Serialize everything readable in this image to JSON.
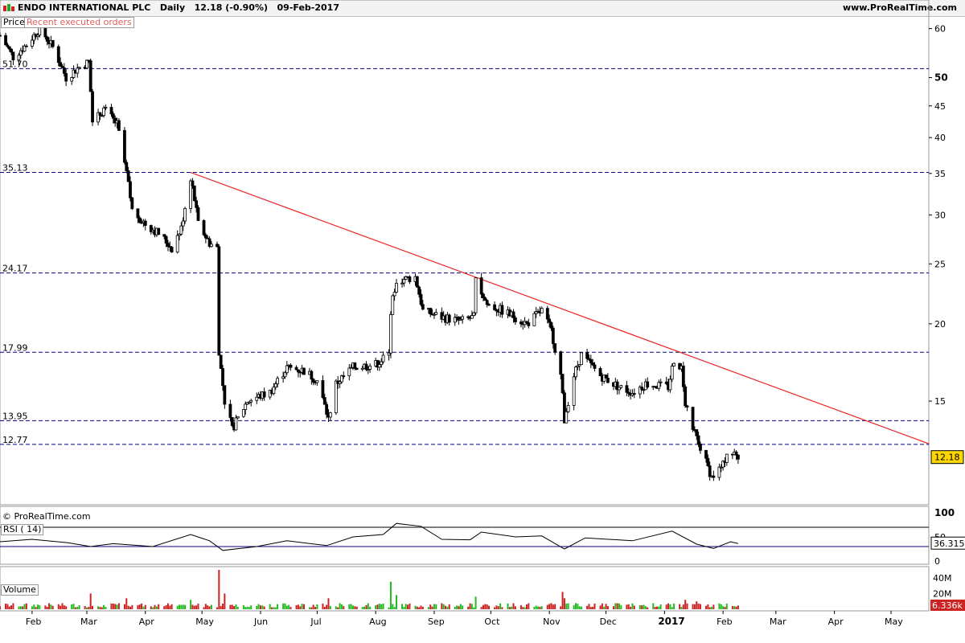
{
  "header": {
    "symbol": "ENDO INTERNATIONAL PLC",
    "period": "Daily",
    "quote": "12.18 (-0.90%)",
    "date": "09-Feb-2017",
    "site": "www.ProRealTime.com"
  },
  "tabs": {
    "price": "Price",
    "recent_orders": "Recent executed orders",
    "rsi": "RSI ( 14)",
    "volume": "Volume"
  },
  "copyright": "© ProRealTime.com",
  "colors": {
    "up": "#ffffff",
    "down": "#000000",
    "trendline": "#ee2222",
    "level_line": "#000080",
    "rsi_line": "#000000",
    "rsi_overbought_fill": "#cc6666",
    "rsi_oversold_fill": "#66aa66",
    "volume_up": "#22bb22",
    "volume_down": "#cc2222",
    "last_price_bg": "#ffd700",
    "volume_badge": "#cc2222"
  },
  "chart_data": {
    "type": "candlestick",
    "price_axis": {
      "ticks": [
        60,
        50,
        45,
        40,
        35,
        30,
        25,
        20,
        15
      ],
      "bold_ticks": [
        50
      ],
      "ylim_log": [
        10.2,
        64
      ]
    },
    "horizontal_levels": [
      {
        "value": 51.7,
        "label": "51.70"
      },
      {
        "value": 35.13,
        "label": "35.13"
      },
      {
        "value": 24.17,
        "label": "24.17"
      },
      {
        "value": 17.99,
        "label": "17.99"
      },
      {
        "value": 13.95,
        "label": "13.95"
      },
      {
        "value": 12.77,
        "label": "12.77"
      }
    ],
    "last_price": "12.18",
    "x_axis": {
      "labels": [
        "Feb",
        "Mar",
        "Apr",
        "May",
        "Jun",
        "Jul",
        "Aug",
        "Sep",
        "Oct",
        "Nov",
        "Dec",
        "2017",
        "Feb",
        "Mar",
        "Apr",
        "May"
      ],
      "bold_labels": [
        "2017"
      ],
      "start": "2016-01-15",
      "end": "2017-05-21"
    },
    "trendline": {
      "from": {
        "date": "2016-04-25",
        "value": 35.13
      },
      "to": {
        "date": "2017-05-21",
        "value": 12.8
      }
    },
    "price_path": [
      [
        "2016-01-15",
        58.5
      ],
      [
        "2016-01-22",
        54.0
      ],
      [
        "2016-01-29",
        56.5
      ],
      [
        "2016-02-05",
        60.0
      ],
      [
        "2016-02-12",
        56.0
      ],
      [
        "2016-02-19",
        50.0
      ],
      [
        "2016-02-26",
        52.0
      ],
      [
        "2016-03-02",
        53.0
      ],
      [
        "2016-03-04",
        42.0
      ],
      [
        "2016-03-10",
        44.5
      ],
      [
        "2016-03-17",
        42.0
      ],
      [
        "2016-03-22",
        35.0
      ],
      [
        "2016-03-25",
        30.5
      ],
      [
        "2016-04-01",
        29.0
      ],
      [
        "2016-04-08",
        28.0
      ],
      [
        "2016-04-15",
        26.5
      ],
      [
        "2016-04-20",
        28.5
      ],
      [
        "2016-04-25",
        34.5
      ],
      [
        "2016-04-29",
        29.0
      ],
      [
        "2016-05-05",
        27.0
      ],
      [
        "2016-05-09",
        26.5
      ],
      [
        "2016-05-10",
        17.8
      ],
      [
        "2016-05-13",
        15.0
      ],
      [
        "2016-05-17",
        13.5
      ],
      [
        "2016-05-25",
        15.0
      ],
      [
        "2016-06-06",
        15.5
      ],
      [
        "2016-06-15",
        17.0
      ],
      [
        "2016-06-24",
        16.8
      ],
      [
        "2016-07-01",
        16.2
      ],
      [
        "2016-07-07",
        14.0
      ],
      [
        "2016-07-11",
        16.0
      ],
      [
        "2016-07-20",
        17.0
      ],
      [
        "2016-08-01",
        17.2
      ],
      [
        "2016-08-08",
        17.8
      ],
      [
        "2016-08-09",
        21.0
      ],
      [
        "2016-08-12",
        23.5
      ],
      [
        "2016-08-22",
        23.8
      ],
      [
        "2016-08-26",
        21.0
      ],
      [
        "2016-09-05",
        20.5
      ],
      [
        "2016-09-15",
        20.2
      ],
      [
        "2016-09-22",
        20.5
      ],
      [
        "2016-09-23",
        23.5
      ],
      [
        "2016-09-29",
        21.5
      ],
      [
        "2016-10-07",
        21.0
      ],
      [
        "2016-10-14",
        20.5
      ],
      [
        "2016-10-20",
        20.0
      ],
      [
        "2016-10-28",
        21.0
      ],
      [
        "2016-11-02",
        19.5
      ],
      [
        "2016-11-07",
        16.5
      ],
      [
        "2016-11-09",
        14.0
      ],
      [
        "2016-11-14",
        16.5
      ],
      [
        "2016-11-18",
        17.8
      ],
      [
        "2016-11-28",
        16.5
      ],
      [
        "2016-12-08",
        15.8
      ],
      [
        "2016-12-15",
        15.5
      ],
      [
        "2016-12-22",
        16.0
      ],
      [
        "2017-01-03",
        15.8
      ],
      [
        "2017-01-06",
        17.5
      ],
      [
        "2017-01-10",
        17.0
      ],
      [
        "2017-01-12",
        15.0
      ],
      [
        "2017-01-16",
        13.5
      ],
      [
        "2017-01-20",
        12.6
      ],
      [
        "2017-01-26",
        11.3
      ],
      [
        "2017-02-01",
        11.8
      ],
      [
        "2017-02-03",
        12.4
      ],
      [
        "2017-02-07",
        12.3
      ],
      [
        "2017-02-09",
        12.18
      ]
    ],
    "rsi": {
      "label": "RSI ( 14)",
      "value": "36.315",
      "ticks": [
        100,
        50,
        0
      ],
      "overbought": 70,
      "oversold": 30,
      "path": [
        [
          "2016-01-15",
          40
        ],
        [
          "2016-02-01",
          45
        ],
        [
          "2016-02-20",
          38
        ],
        [
          "2016-03-03",
          30
        ],
        [
          "2016-03-15",
          36
        ],
        [
          "2016-04-05",
          30
        ],
        [
          "2016-04-25",
          55
        ],
        [
          "2016-05-05",
          42
        ],
        [
          "2016-05-12",
          22
        ],
        [
          "2016-05-30",
          30
        ],
        [
          "2016-06-15",
          42
        ],
        [
          "2016-07-06",
          32
        ],
        [
          "2016-07-20",
          50
        ],
        [
          "2016-08-05",
          55
        ],
        [
          "2016-08-12",
          78
        ],
        [
          "2016-08-25",
          72
        ],
        [
          "2016-09-05",
          45
        ],
        [
          "2016-09-20",
          44
        ],
        [
          "2016-09-26",
          60
        ],
        [
          "2016-10-14",
          50
        ],
        [
          "2016-10-28",
          52
        ],
        [
          "2016-11-09",
          25
        ],
        [
          "2016-11-20",
          48
        ],
        [
          "2016-12-15",
          42
        ],
        [
          "2017-01-05",
          62
        ],
        [
          "2017-01-18",
          35
        ],
        [
          "2017-01-27",
          26
        ],
        [
          "2017-02-05",
          40
        ],
        [
          "2017-02-09",
          36.3
        ]
      ]
    },
    "volume": {
      "label": "Volume",
      "ticks": [
        "40M",
        "20M"
      ],
      "badge": "6.336k",
      "max": 50,
      "spikes": [
        [
          "2016-03-03",
          20
        ],
        [
          "2016-03-22",
          14
        ],
        [
          "2016-04-25",
          12
        ],
        [
          "2016-05-10",
          50
        ],
        [
          "2016-05-13",
          20
        ],
        [
          "2016-07-07",
          14
        ],
        [
          "2016-08-09",
          35
        ],
        [
          "2016-08-12",
          18
        ],
        [
          "2016-09-23",
          16
        ],
        [
          "2016-11-08",
          22
        ],
        [
          "2016-11-09",
          14
        ],
        [
          "2017-01-12",
          12
        ],
        [
          "2017-01-18",
          10
        ]
      ],
      "base": 6
    }
  }
}
